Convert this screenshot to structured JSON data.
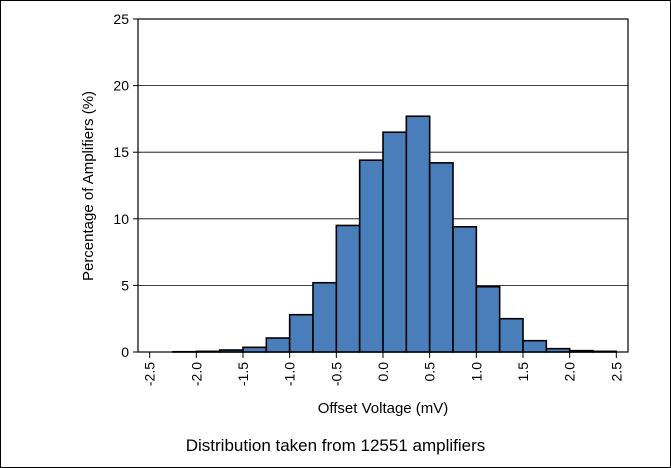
{
  "chart_data": {
    "type": "bar",
    "title": "",
    "xlabel": "Offset Voltage (mV)",
    "ylabel": "Percentage of Amplifiers (%)",
    "ylim": [
      0,
      25
    ],
    "y_ticks": [
      "0",
      "5",
      "10",
      "15",
      "20",
      "25"
    ],
    "xlim": [
      -2.625,
      2.625
    ],
    "x_ticks": [
      "-2.5",
      "-2.0",
      "-1.5",
      "-1.0",
      "-0.5",
      "0.0",
      "0.5",
      "1.0",
      "1.5",
      "2.0",
      "2.5"
    ],
    "bin_width": 0.25,
    "bins_left_edges": [
      -2.5,
      -2.25,
      -2.0,
      -1.75,
      -1.5,
      -1.25,
      -1.0,
      -0.75,
      -0.5,
      -0.25,
      0.0,
      0.25,
      0.5,
      0.75,
      1.0,
      1.25,
      1.5,
      1.75,
      2.0,
      2.25
    ],
    "values": [
      0.0,
      0.02,
      0.05,
      0.15,
      0.35,
      1.05,
      2.8,
      5.2,
      9.5,
      14.4,
      16.5,
      17.7,
      14.2,
      9.4,
      4.9,
      2.5,
      0.85,
      0.25,
      0.1,
      0.05
    ],
    "bar_color": "#4a7ebb",
    "grid": "horizontal",
    "legend": "none"
  },
  "caption": "Distribution taken from 12551 amplifiers"
}
